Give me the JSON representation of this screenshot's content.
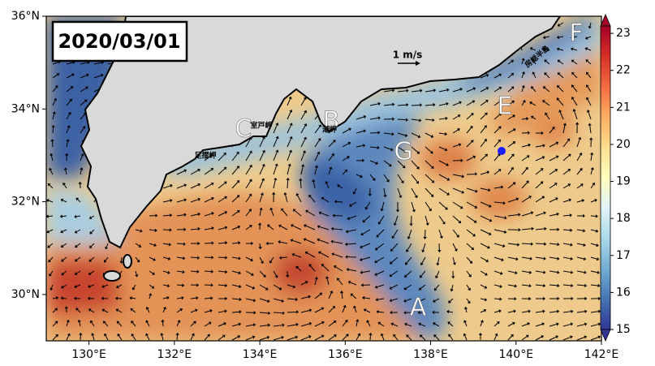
{
  "map": {
    "title": "2020/03/01",
    "scale_label": "1 m/s",
    "xlim": [
      129,
      142
    ],
    "ylim": [
      29,
      36
    ],
    "xticks": [
      {
        "value": 130,
        "label": "130°E"
      },
      {
        "value": 132,
        "label": "132°E"
      },
      {
        "value": 134,
        "label": "134°E"
      },
      {
        "value": 136,
        "label": "136°E"
      },
      {
        "value": 138,
        "label": "138°E"
      },
      {
        "value": 140,
        "label": "140°E"
      },
      {
        "value": 142,
        "label": "142°E"
      }
    ],
    "yticks": [
      {
        "value": 30,
        "label": "30°N"
      },
      {
        "value": 32,
        "label": "32°N"
      },
      {
        "value": 34,
        "label": "34°N"
      },
      {
        "value": 36,
        "label": "36°N"
      }
    ],
    "colorbar": {
      "clim": [
        15,
        23.2
      ],
      "ticks": [
        15,
        16,
        17,
        18,
        19,
        20,
        21,
        22,
        23
      ]
    },
    "points": [
      "A",
      "B",
      "C",
      "E",
      "F",
      "G"
    ],
    "places": [
      "室戸岬",
      "潮岬",
      "足摺岬",
      "房総半島"
    ]
  }
}
